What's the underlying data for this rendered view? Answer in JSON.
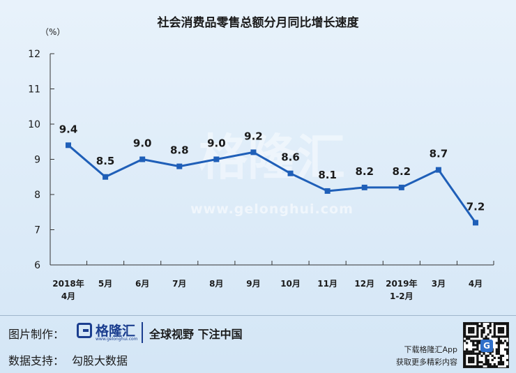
{
  "chart_data": {
    "type": "line",
    "title": "社会消费品零售总额分月同比增长速度",
    "ylabel": "（%）",
    "xlabel": "",
    "ylim": [
      6,
      12
    ],
    "yticks": [
      "6",
      "7",
      "8",
      "9",
      "10",
      "11",
      "12"
    ],
    "categories": [
      [
        "2018年",
        "4月"
      ],
      [
        "5月"
      ],
      [
        "6月"
      ],
      [
        "7月"
      ],
      [
        "8月"
      ],
      [
        "9月"
      ],
      [
        "10月"
      ],
      [
        "11月"
      ],
      [
        "12月"
      ],
      [
        "2019年",
        "1-2月"
      ],
      [
        "3月"
      ],
      [
        "4月"
      ]
    ],
    "values": [
      9.4,
      8.5,
      9.0,
      8.8,
      9.0,
      9.2,
      8.6,
      8.1,
      8.2,
      8.2,
      8.7,
      7.2
    ],
    "data_labels": [
      "9.4",
      "8.5",
      "9.0",
      "8.8",
      "9.0",
      "9.2",
      "8.6",
      "8.1",
      "8.2",
      "8.2",
      "8.7",
      "7.2"
    ],
    "grid": false,
    "line_color": "#1f5fb8"
  },
  "watermark": {
    "text": "格隆汇",
    "url": "www.gelonghui.com"
  },
  "footer": {
    "made_label": "图片制作：",
    "logo_name": "格隆汇",
    "logo_url": "www.gelonghui.com",
    "slogan": "全球视野 下注中国",
    "support_label": "数据支持：",
    "support_value": "勾股大数据",
    "app_line1": "下载格隆汇App",
    "app_line2": "获取更多精彩内容",
    "qr_badge": "G"
  },
  "colors": {
    "line": "#1f5fb8",
    "logo": "#1b3e8f",
    "background": "#dcebf8"
  },
  "icons": {
    "logo": "gelonghui-logo-icon",
    "qr": "qr-code-icon"
  }
}
